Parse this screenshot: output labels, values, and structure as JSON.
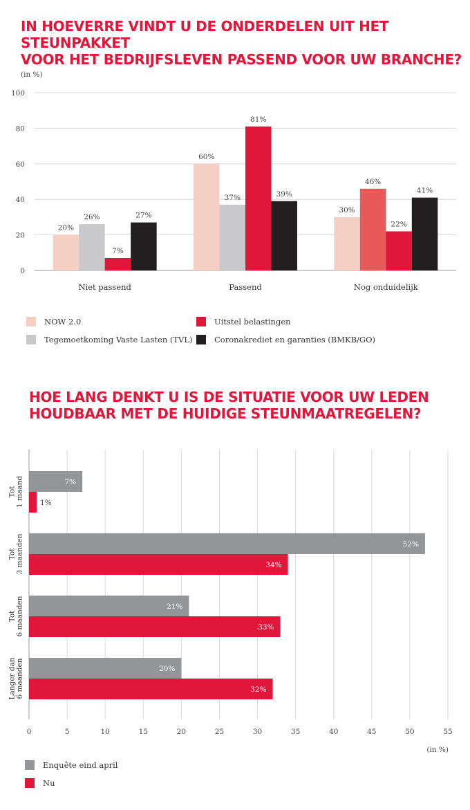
{
  "chart1": {
    "title_line1": "IN HOEVERRE VINDT U DE ONDERDELEN UIT HET STEUNPAKKET",
    "title_line2": "VOOR HET BEDRIJFSLEVEN PASSEND VOOR UW BRANCHE?",
    "unit_label": "(in %)"
  },
  "chart2": {
    "title_line1": "HOE LANG DENKT U IS DE SITUATIE VOOR UW LEDEN",
    "title_line2": "HOUDBAAR MET DE HUIDIGE STEUNMAATREGELEN?",
    "unit_label": "(in %)"
  },
  "chart_data": [
    {
      "type": "bar",
      "orientation": "vertical",
      "title": "IN HOEVERRE VINDT U DE ONDERDELEN UIT HET STEUNPAKKET VOOR HET BEDRIJFSLEVEN PASSEND VOOR UW BRANCHE?",
      "ylabel": "(in %)",
      "ylim": [
        0,
        100
      ],
      "yticks": [
        0,
        20,
        40,
        60,
        80,
        100
      ],
      "grid": true,
      "legend_position": "bottom",
      "categories": [
        "Niet passend",
        "Passend",
        "Nog onduidelijk"
      ],
      "series": [
        {
          "name": "NOW 2.0",
          "color": "#f6cfc4",
          "values": [
            20,
            60,
            30
          ],
          "labels": [
            "20%",
            "60%",
            "30%"
          ]
        },
        {
          "name": "Tegemoetkoming Vaste Lasten (TVL)",
          "color": "#c9c8ca",
          "values": [
            26,
            37,
            46
          ],
          "labels": [
            "26%",
            "37%",
            "46%"
          ]
        },
        {
          "name": "Uitstel belastingen",
          "color": "#e0173a",
          "values": [
            7,
            81,
            22
          ],
          "labels": [
            "7%",
            "81%",
            "22%"
          ]
        },
        {
          "name": "Coronakrediet en garanties (BMKB/GO)",
          "color": "#231f20",
          "values": [
            27,
            39,
            41
          ],
          "labels": [
            "27%",
            "39%",
            "41%"
          ]
        }
      ],
      "bar_overrides": [
        {
          "category": 2,
          "series": 1,
          "color": "#e85a57"
        }
      ],
      "legend_rows": [
        [
          "NOW 2.0",
          "Uitstel belastingen"
        ],
        [
          "Tegemoetkoming Vaste Lasten (TVL)",
          "Coronakrediet en garanties (BMKB/GO)"
        ]
      ]
    },
    {
      "type": "bar",
      "orientation": "horizontal",
      "title": "HOE LANG DENKT U IS DE SITUATIE VOOR UW LEDEN HOUDBAAR MET DE HUIDIGE STEUNMAATREGELEN?",
      "xlabel": "(in %)",
      "xlim": [
        0,
        55
      ],
      "xticks": [
        0,
        5,
        10,
        15,
        20,
        25,
        30,
        35,
        40,
        45,
        50,
        55
      ],
      "grid": true,
      "legend_position": "bottom-left",
      "categories": [
        [
          "Tot",
          "1 maand"
        ],
        [
          "Tot",
          "3 maanden"
        ],
        [
          "Tot",
          "6 maanden"
        ],
        [
          "Langer dan",
          "6 maanden"
        ]
      ],
      "series": [
        {
          "name": "Enquête eind april",
          "color": "#939598",
          "values": [
            7,
            52,
            21,
            20
          ],
          "labels": [
            "7%",
            "52%",
            "21%",
            "20%"
          ]
        },
        {
          "name": "Nu",
          "color": "#e0173a",
          "values": [
            1,
            34,
            33,
            32
          ],
          "labels": [
            "1%",
            "34%",
            "33%",
            "32%"
          ]
        }
      ]
    }
  ]
}
